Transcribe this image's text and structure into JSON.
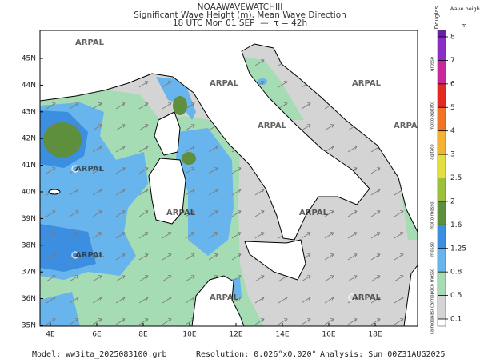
{
  "header": {
    "model_name": "NOAAWAVEWATCHIII",
    "title": "Significant Wave Height (m), Mean Wave Direction",
    "time": "18 UTC Mon 01 SEP  —  τ = 42h"
  },
  "map": {
    "lat_labels": [
      "35N",
      "36N",
      "37N",
      "38N",
      "39N",
      "40N",
      "41N",
      "42N",
      "43N",
      "44N",
      "45N"
    ],
    "lon_labels": [
      "4E",
      "6E",
      "8E",
      "10E",
      "12E",
      "14E",
      "16E",
      "18E"
    ],
    "watermark": "ARPAL"
  },
  "legend": {
    "title": "Douglas",
    "unit_title": "Wave height",
    "unit": "m",
    "labels": [
      "0.1",
      "0.5",
      "0.8",
      "1.25",
      "1.6",
      "2",
      "2.5",
      "3",
      "4",
      "5",
      "6",
      "7",
      "8"
    ],
    "colors": [
      "#ffffff",
      "#d4d4d4",
      "#a6dcb4",
      "#68b4ec",
      "#3b8ee0",
      "#5e8f3c",
      "#9cc03c",
      "#e2df3e",
      "#f2b432",
      "#f07424",
      "#e02a22",
      "#c8289a",
      "#8a2ec4",
      "#6a1fa8"
    ],
    "douglas_terms": [
      "calmo",
      "quasi calmo",
      "poco mosso",
      "mosso",
      "molto mosso",
      "agitato",
      "molto agitato",
      "grosso"
    ]
  },
  "footer": {
    "model": "Model: ww3ita_2025083100.grb",
    "resolution": "Resolution: 0.026°x0.020°",
    "analysis": "Analysis: Sun 00Z31AUG2025"
  }
}
